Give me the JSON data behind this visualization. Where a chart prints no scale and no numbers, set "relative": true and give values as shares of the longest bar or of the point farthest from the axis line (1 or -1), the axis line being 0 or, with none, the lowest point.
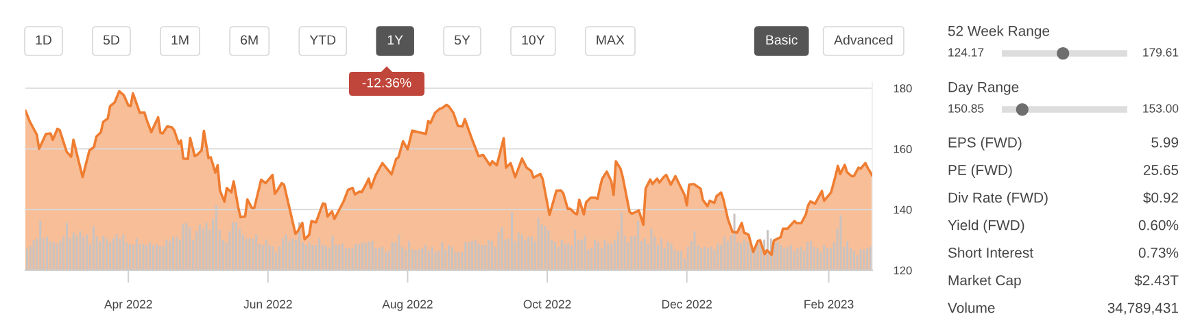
{
  "chart_data": [
    {
      "type": "area",
      "color": "#ef7d31",
      "grid": "y",
      "annotations": [
        "-12.36%"
      ],
      "x": [
        "2022-02-15",
        "2022-02-17",
        "2022-02-20",
        "2022-02-21",
        "2022-02-24",
        "2022-02-26",
        "2022-02-27",
        "2022-03-01",
        "2022-03-02",
        "2022-03-05",
        "2022-03-07",
        "2022-03-08",
        "2022-03-12",
        "2022-03-15",
        "2022-03-17",
        "2022-03-18",
        "2022-03-20",
        "2022-03-21",
        "2022-03-23",
        "2022-03-24",
        "2022-03-26",
        "2022-03-28",
        "2022-03-30",
        "2022-04-01",
        "2022-04-02",
        "2022-04-03",
        "2022-04-06",
        "2022-04-08",
        "2022-04-09",
        "2022-04-11",
        "2022-04-14",
        "2022-04-15",
        "2022-04-16",
        "2022-04-18",
        "2022-04-20",
        "2022-04-21",
        "2022-04-23",
        "2022-04-24",
        "2022-04-25",
        "2022-04-27",
        "2022-04-28",
        "2022-04-30",
        "2022-05-01",
        "2022-05-03",
        "2022-05-04",
        "2022-05-06",
        "2022-05-07",
        "2022-05-09",
        "2022-05-10",
        "2022-05-11",
        "2022-05-13",
        "2022-05-14",
        "2022-05-16",
        "2022-05-17",
        "2022-05-19",
        "2022-05-20",
        "2022-05-22",
        "2022-05-23",
        "2022-05-25",
        "2022-05-26",
        "2022-05-29",
        "2022-05-31",
        "2022-06-03",
        "2022-06-04",
        "2022-06-05",
        "2022-06-07",
        "2022-06-08",
        "2022-06-13",
        "2022-06-14",
        "2022-06-16",
        "2022-06-17",
        "2022-06-19",
        "2022-06-20",
        "2022-06-22",
        "2022-06-25",
        "2022-06-26",
        "2022-06-27",
        "2022-06-29",
        "2022-06-30",
        "2022-07-04",
        "2022-07-06",
        "2022-07-08",
        "2022-07-09",
        "2022-07-11",
        "2022-07-12",
        "2022-07-14",
        "2022-07-15",
        "2022-07-16",
        "2022-07-18",
        "2022-07-21",
        "2022-07-25",
        "2022-07-27",
        "2022-07-28",
        "2022-07-30",
        "2022-08-01",
        "2022-08-03",
        "2022-08-09",
        "2022-08-10",
        "2022-08-11",
        "2022-08-13",
        "2022-08-15",
        "2022-08-16",
        "2022-08-18",
        "2022-08-19",
        "2022-08-21",
        "2022-08-23",
        "2022-08-25",
        "2022-08-26",
        "2022-08-29",
        "2022-09-01",
        "2022-09-03",
        "2022-09-06",
        "2022-09-07",
        "2022-09-09",
        "2022-09-10",
        "2022-09-12",
        "2022-09-13",
        "2022-09-15",
        "2022-09-17",
        "2022-09-20",
        "2022-09-22",
        "2022-09-24",
        "2022-09-25",
        "2022-09-28",
        "2022-09-29",
        "2022-10-02",
        "2022-10-05",
        "2022-10-07",
        "2022-10-08",
        "2022-10-10",
        "2022-10-11",
        "2022-10-13",
        "2022-10-14",
        "2022-10-15",
        "2022-10-17",
        "2022-10-18",
        "2022-10-20",
        "2022-10-22",
        "2022-10-23",
        "2022-10-24",
        "2022-10-25",
        "2022-10-27",
        "2022-10-29",
        "2022-10-30",
        "2022-10-31",
        "2022-11-02",
        "2022-11-03",
        "2022-11-06",
        "2022-11-07",
        "2022-11-10",
        "2022-11-12",
        "2022-11-13",
        "2022-11-15",
        "2022-11-16",
        "2022-11-18",
        "2022-11-19",
        "2022-11-21",
        "2022-11-22",
        "2022-11-24",
        "2022-11-26",
        "2022-11-30",
        "2022-12-01",
        "2022-12-02",
        "2022-12-04",
        "2022-12-07",
        "2022-12-08",
        "2022-12-10",
        "2022-12-11",
        "2022-12-13",
        "2022-12-14",
        "2022-12-16",
        "2022-12-17",
        "2022-12-19",
        "2022-12-21",
        "2022-12-23",
        "2022-12-25",
        "2022-12-26",
        "2022-12-28",
        "2022-12-30",
        "2023-01-01",
        "2023-01-02",
        "2023-01-04",
        "2023-01-05",
        "2023-01-07",
        "2023-01-08",
        "2023-01-11",
        "2023-01-12",
        "2023-01-14",
        "2023-01-17",
        "2023-01-18",
        "2023-01-20",
        "2023-01-22",
        "2023-01-23",
        "2023-01-24",
        "2023-01-26",
        "2023-01-29",
        "2023-01-30",
        "2023-02-02",
        "2023-02-04",
        "2023-02-05",
        "2023-02-06",
        "2023-02-08",
        "2023-02-09",
        "2023-02-11",
        "2023-02-12",
        "2023-02-14",
        "2023-02-15",
        "2023-02-17",
        "2023-02-18",
        "2023-02-20"
      ],
      "values": [
        172.6,
        168.9,
        164.7,
        160.0,
        164.9,
        165.1,
        163.0,
        166.6,
        166.2,
        159.1,
        157.4,
        163.0,
        150.7,
        159.5,
        160.6,
        164.0,
        165.5,
        168.9,
        170.0,
        174.0,
        175.3,
        179.0,
        177.7,
        174.3,
        174.1,
        178.3,
        171.9,
        172.0,
        169.6,
        165.5,
        170.4,
        165.3,
        165.1,
        167.4,
        167.1,
        166.2,
        161.7,
        162.8,
        156.8,
        156.7,
        163.6,
        157.6,
        158.0,
        159.5,
        165.9,
        157.0,
        157.2,
        152.2,
        154.6,
        146.3,
        142.6,
        147.1,
        145.7,
        149.3,
        140.7,
        137.5,
        137.7,
        143.3,
        140.5,
        140.5,
        149.8,
        148.7,
        151.4,
        145.2,
        146.2,
        148.7,
        148.2,
        132.0,
        132.8,
        135.6,
        130.2,
        131.7,
        136.2,
        135.8,
        142.0,
        141.8,
        137.7,
        139.4,
        136.9,
        142.6,
        146.5,
        147.1,
        145.0,
        145.9,
        145.8,
        148.6,
        150.2,
        147.1,
        151.2,
        155.3,
        151.6,
        156.7,
        157.2,
        162.5,
        159.8,
        166.0,
        164.9,
        169.2,
        168.5,
        171.9,
        173.2,
        173.4,
        174.5,
        174.0,
        171.9,
        167.5,
        167.4,
        169.8,
        163.5,
        157.6,
        158.0,
        154.6,
        155.9,
        154.6,
        157.6,
        163.5,
        153.8,
        155.3,
        150.7,
        156.8,
        153.8,
        152.7,
        150.5,
        151.7,
        150.1,
        138.2,
        146.2,
        146.3,
        145.4,
        140.2,
        140.3,
        138.8,
        138.4,
        143.2,
        138.4,
        142.4,
        143.9,
        143.9,
        143.5,
        147.2,
        150.1,
        152.5,
        149.3,
        144.8,
        155.9,
        153.5,
        150.7,
        139.2,
        138.6,
        139.7,
        135.0,
        146.9,
        149.9,
        148.4,
        150.2,
        148.9,
        150.8,
        151.4,
        148.2,
        151.0,
        144.8,
        141.4,
        148.2,
        148.4,
        146.9,
        143.2,
        141.1,
        142.9,
        142.2,
        144.4,
        145.6,
        143.3,
        136.7,
        132.6,
        132.4,
        135.6,
        132.4,
        131.7,
        126.0,
        129.6,
        129.9,
        125.3,
        126.6,
        125.1,
        129.8,
        130.9,
        133.7,
        133.7,
        136.2,
        135.5,
        135.5,
        138.4,
        141.4,
        142.7,
        141.9,
        146.1,
        142.9,
        145.6,
        151.2,
        154.4,
        151.7,
        154.7,
        152.3,
        151.0,
        151.0,
        153.8,
        153.5,
        155.3,
        153.8,
        151.2
      ],
      "xlim": [
        "2022-02-15",
        "2023-02-20"
      ],
      "ylim": [
        120,
        182
      ],
      "xticks": [
        {
          "value": "2022-04-01",
          "label": "Apr 2022"
        },
        {
          "value": "2022-06-01",
          "label": "Jun 2022"
        },
        {
          "value": "2022-08-01",
          "label": "Aug 2022"
        },
        {
          "value": "2022-10-01",
          "label": "Oct 2022"
        },
        {
          "value": "2022-12-01",
          "label": "Dec 2022"
        },
        {
          "value": "2023-02-01",
          "label": "Feb 2023"
        }
      ],
      "yticks": [
        120,
        140,
        160,
        180
      ]
    },
    {
      "type": "bar",
      "relative": true,
      "color": "#c8c3c1",
      "categories": [
        null,
        null,
        null,
        null,
        null,
        null,
        null,
        null,
        null,
        null,
        null,
        null,
        null,
        null,
        null,
        null,
        null,
        null,
        null,
        null,
        null,
        null,
        null,
        null,
        null,
        null,
        null,
        null,
        null,
        null,
        null,
        null,
        null,
        null,
        null,
        null,
        null,
        null,
        null,
        null,
        null,
        null,
        null,
        null,
        null,
        null,
        null,
        null,
        null,
        null,
        null,
        null,
        null,
        null,
        null,
        null,
        null,
        null,
        null,
        null,
        null,
        null,
        null,
        null,
        null,
        null,
        null,
        null,
        null,
        null,
        null,
        null,
        null,
        null,
        null,
        null,
        null,
        null,
        null,
        null,
        null,
        null,
        null,
        null,
        null,
        null,
        null,
        null,
        null,
        null,
        null,
        null,
        null,
        null,
        null,
        null,
        null,
        null,
        null,
        null,
        null,
        null,
        null,
        null,
        null,
        null,
        null,
        null,
        null,
        null,
        null,
        null,
        null,
        null,
        null,
        null,
        null,
        null,
        null,
        null,
        null,
        null,
        null,
        null,
        null,
        null,
        null,
        null,
        null,
        null,
        null,
        null,
        null,
        null,
        null,
        null,
        null,
        null,
        null,
        null,
        null,
        null,
        null,
        null,
        null,
        null,
        null,
        null,
        null,
        null,
        null,
        null,
        null,
        null,
        null,
        null,
        null,
        null,
        null,
        null,
        null,
        null,
        null,
        null,
        null,
        null,
        null,
        null,
        null,
        null,
        null,
        null,
        null,
        null,
        null,
        null,
        null,
        null,
        null,
        null,
        null,
        null,
        null,
        null,
        null,
        null,
        null,
        null,
        null,
        null,
        null,
        null,
        null,
        null,
        null,
        null,
        null,
        null,
        null,
        null,
        null,
        null,
        null,
        null,
        null,
        null,
        null,
        null,
        null,
        null,
        null,
        null,
        null,
        null,
        null,
        null,
        null,
        null,
        null,
        null,
        null,
        null,
        null,
        null,
        null,
        null,
        null,
        null,
        null,
        null,
        null,
        null,
        null,
        null,
        null,
        null,
        null,
        null,
        null,
        null,
        null,
        null,
        null,
        null,
        null,
        null,
        null,
        null,
        null,
        null,
        null,
        null,
        null,
        null,
        null
      ],
      "values": [
        0.33,
        0.37,
        0.46,
        0.49,
        0.76,
        0.49,
        0.52,
        0.45,
        0.43,
        0.41,
        0.45,
        0.52,
        0.73,
        0.49,
        0.58,
        0.53,
        0.6,
        0.52,
        0.55,
        0.41,
        0.68,
        0.52,
        0.45,
        0.53,
        0.49,
        0.43,
        0.49,
        0.55,
        0.49,
        0.55,
        0.43,
        0.4,
        0.39,
        0.49,
        0.41,
        0.4,
        0.39,
        0.43,
        0.39,
        0.4,
        0.37,
        0.37,
        0.47,
        0.45,
        0.52,
        0.52,
        0.47,
        0.71,
        0.73,
        0.66,
        0.47,
        0.6,
        0.7,
        0.64,
        0.73,
        0.62,
        0.79,
        1.0,
        0.62,
        0.47,
        0.43,
        0.6,
        0.74,
        0.74,
        0.64,
        0.55,
        0.49,
        0.49,
        0.49,
        0.55,
        0.41,
        0.39,
        0.47,
        0.39,
        0.37,
        0.28,
        0.37,
        0.49,
        0.55,
        0.45,
        0.49,
        0.47,
        0.74,
        0.43,
        0.39,
        0.43,
        0.39,
        0.39,
        0.49,
        0.39,
        0.37,
        0.35,
        0.53,
        0.39,
        0.39,
        0.41,
        0.34,
        0.34,
        0.34,
        0.41,
        0.4,
        0.43,
        0.42,
        0.44,
        0.45,
        0.34,
        0.34,
        0.36,
        0.28,
        0.3,
        0.43,
        0.43,
        0.55,
        0.36,
        0.32,
        0.45,
        0.32,
        0.31,
        0.32,
        0.34,
        0.39,
        0.3,
        0.36,
        0.28,
        0.3,
        0.43,
        0.32,
        0.39,
        0.36,
        0.28,
        0.28,
        0.28,
        0.43,
        0.43,
        0.45,
        0.47,
        0.41,
        0.39,
        0.39,
        0.47,
        0.45,
        0.36,
        0.58,
        0.66,
        0.47,
        0.49,
        0.89,
        0.45,
        0.58,
        0.55,
        0.47,
        0.52,
        0.52,
        0.45,
        0.81,
        0.7,
        0.68,
        0.62,
        0.47,
        0.43,
        0.36,
        0.47,
        0.41,
        0.41,
        0.39,
        0.62,
        0.47,
        0.47,
        0.53,
        0.32,
        0.34,
        0.47,
        0.43,
        0.34,
        0.47,
        0.41,
        0.41,
        0.47,
        0.6,
        0.89,
        0.53,
        0.43,
        0.52,
        0.53,
        0.76,
        0.45,
        0.49,
        0.41,
        0.64,
        0.52,
        0.39,
        0.49,
        0.34,
        0.44,
        0.41,
        0.32,
        0.29,
        0.3,
        0.18,
        0.36,
        0.45,
        0.6,
        0.39,
        0.34,
        0.36,
        0.34,
        0.36,
        0.32,
        0.41,
        0.39,
        0.52,
        0.45,
        0.53,
        0.87,
        0.43,
        0.41,
        0.47,
        0.43,
        0.34,
        0.34,
        0.43,
        0.45,
        0.47,
        0.62,
        0.49,
        0.43,
        0.43,
        0.39,
        0.34,
        0.36,
        0.39,
        0.3,
        0.34,
        0.36,
        0.3,
        0.43,
        0.45,
        0.36,
        0.34,
        0.28,
        0.39,
        0.34,
        0.34,
        0.43,
        0.64,
        0.85,
        0.36,
        0.45,
        0.34,
        0.3,
        0.23,
        0.32,
        0.32,
        0.34,
        0.36
      ]
    },
    {
      "type": "other",
      "annotations": [
        "1D",
        "5D",
        "1M",
        "6M",
        "YTD",
        "1Y",
        "5Y",
        "10Y",
        "MAX",
        "Basic",
        "Advanced",
        "52 Week Range",
        "124.17",
        "179.61",
        "Day Range",
        "150.85",
        "153.00",
        "EPS (FWD)",
        "5.99",
        "PE (FWD)",
        "25.65",
        "Div Rate (FWD)",
        "$0.92",
        "Yield (FWD)",
        "0.60%",
        "Short Interest",
        "0.73%",
        "Market Cap",
        "$2.43T",
        "Volume",
        "34,789,431"
      ]
    }
  ]
}
